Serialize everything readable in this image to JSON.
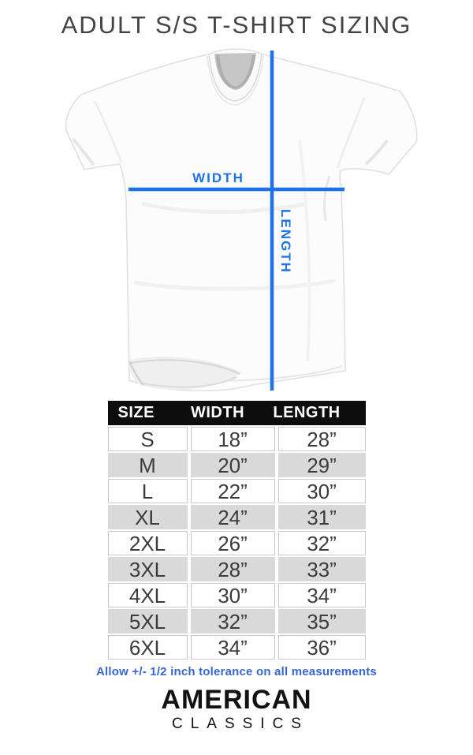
{
  "title": "ADULT S/S T-SHIRT SIZING",
  "diagram": {
    "width_label": "WIDTH",
    "length_label": "LENGTH"
  },
  "chart_data": {
    "type": "table",
    "title": "ADULT S/S T-SHIRT SIZING",
    "columns": [
      "SIZE",
      "WIDTH",
      "LENGTH"
    ],
    "rows": [
      [
        "S",
        "18”",
        "28”"
      ],
      [
        "M",
        "20”",
        "29”"
      ],
      [
        "L",
        "22”",
        "30”"
      ],
      [
        "XL",
        "24”",
        "31”"
      ],
      [
        "2XL",
        "26”",
        "32”"
      ],
      [
        "3XL",
        "28”",
        "33”"
      ],
      [
        "4XL",
        "30”",
        "34”"
      ],
      [
        "5XL",
        "32”",
        "35”"
      ],
      [
        "6XL",
        "34”",
        "36”"
      ]
    ]
  },
  "note": "Allow +/- 1/2 inch tolerance on all measurements",
  "brand": {
    "line1": "AMERICAN",
    "line2": "CLASSICS"
  },
  "colors": {
    "accent_line": "#1f73e8",
    "accent_text": "#3767d2",
    "row_alt": "#d9d9d9",
    "header_bg": "#0d0d0d",
    "cell_border": "#c9c9c9",
    "text_dark": "#3c3c3c"
  }
}
